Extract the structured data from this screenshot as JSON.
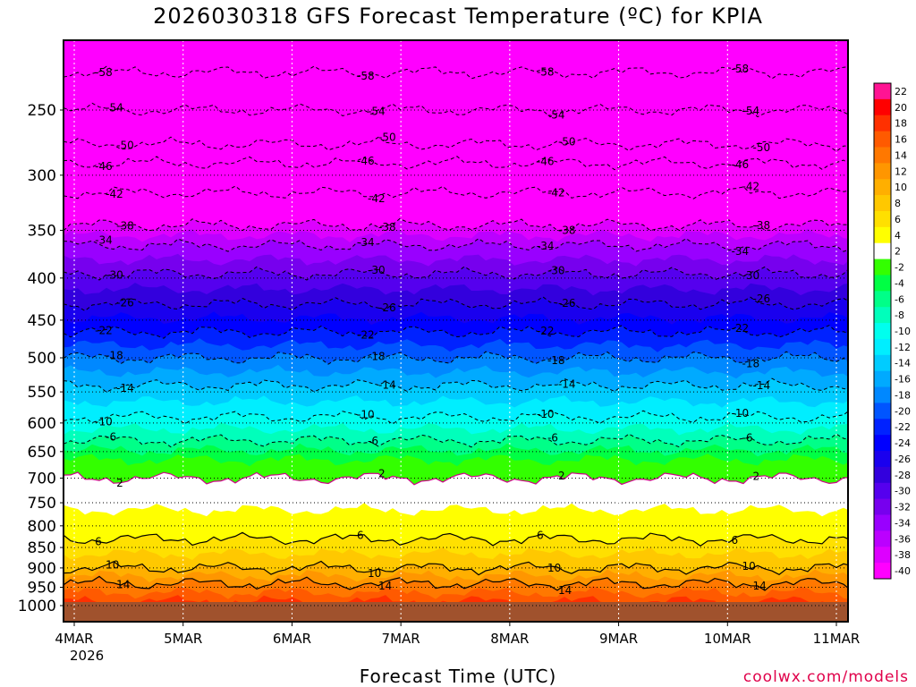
{
  "chart_data": {
    "type": "heatmap",
    "title": "2026030318 GFS Forecast Temperature (ºC) for KPIA",
    "xlabel": "Forecast Time (UTC)",
    "ylabel": "",
    "y_scale": "log",
    "ylim": [
      1000,
      200
    ],
    "y_ticks": [
      250,
      300,
      350,
      400,
      450,
      500,
      550,
      600,
      650,
      700,
      750,
      800,
      850,
      900,
      950,
      1000
    ],
    "x_ticks": [
      "4MAR",
      "5MAR",
      "6MAR",
      "7MAR",
      "8MAR",
      "9MAR",
      "10MAR",
      "11MAR"
    ],
    "x_tick_sub": "2026",
    "grid": true,
    "colorbar": {
      "levels": [
        22,
        20,
        18,
        16,
        14,
        12,
        10,
        8,
        6,
        4,
        2,
        -2,
        -4,
        -6,
        -8,
        -10,
        -12,
        -14,
        -16,
        -18,
        -20,
        -22,
        -24,
        -26,
        -28,
        -30,
        -32,
        -34,
        -36,
        -38,
        -40
      ],
      "colors": [
        "#ff1493",
        "#ff0000",
        "#ff3000",
        "#ff5a00",
        "#ff7800",
        "#ff9600",
        "#ffaf00",
        "#ffc800",
        "#ffe000",
        "#ffff00",
        "#ffffff",
        "#33ff00",
        "#00ff44",
        "#00ff88",
        "#00ffbb",
        "#00ffee",
        "#00eeff",
        "#00ccff",
        "#00aaff",
        "#0088ff",
        "#0055ff",
        "#0022ff",
        "#0000ff",
        "#1a00ee",
        "#3300dd",
        "#5500ee",
        "#7700ee",
        "#9900ff",
        "#bb00ff",
        "#dd00ff",
        "#ff00ff"
      ]
    },
    "contour_labels": [
      "-58",
      "-54",
      "-50",
      "-46",
      "-42",
      "-38",
      "-34",
      "-30",
      "-26",
      "-22",
      "-18",
      "-14",
      "-10",
      "-6",
      "2",
      "6",
      "10",
      "14"
    ],
    "isotherm_profiles": [
      {
        "level": -58,
        "pressure": 225
      },
      {
        "level": -54,
        "pressure": 250
      },
      {
        "level": -50,
        "pressure": 275
      },
      {
        "level": -46,
        "pressure": 290
      },
      {
        "level": -42,
        "pressure": 315
      },
      {
        "level": -38,
        "pressure": 345
      },
      {
        "level": -34,
        "pressure": 365
      },
      {
        "level": -30,
        "pressure": 395
      },
      {
        "level": -26,
        "pressure": 430
      },
      {
        "level": -22,
        "pressure": 465
      },
      {
        "level": -18,
        "pressure": 500
      },
      {
        "level": -14,
        "pressure": 540
      },
      {
        "level": -10,
        "pressure": 590
      },
      {
        "level": -6,
        "pressure": 630
      },
      {
        "level": 2,
        "pressure": 700
      },
      {
        "level": 6,
        "pressure": 830
      },
      {
        "level": 10,
        "pressure": 900
      },
      {
        "level": 14,
        "pressure": 940
      }
    ]
  },
  "source_credit": "coolwx.com/models"
}
